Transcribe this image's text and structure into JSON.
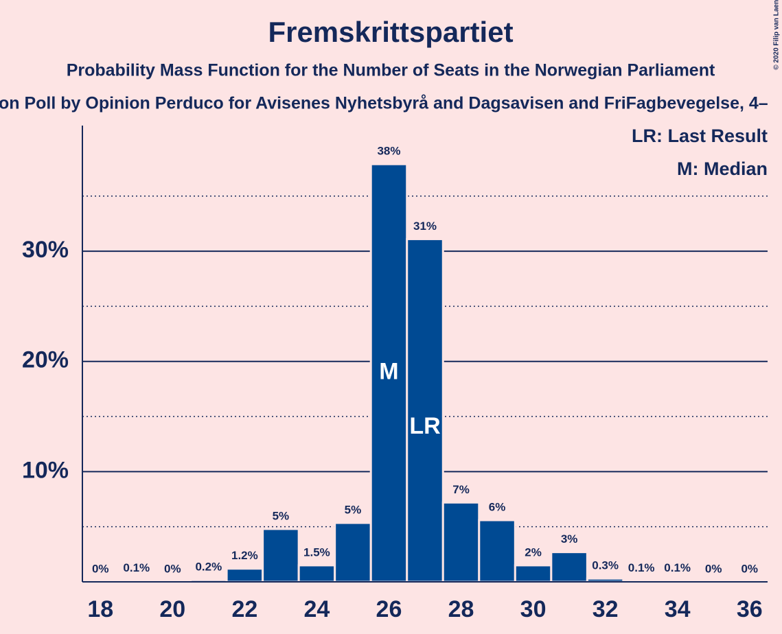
{
  "chart_data": {
    "type": "bar",
    "title": "Fremskrittspartiet",
    "subtitle": "Probability Mass Function for the Number of Seats in the Norwegian Parliament",
    "subtitle2": "on Poll by Opinion Perduco for Avisenes Nyhetsbyrå and Dagsavisen and FriFagbevegelse, 4–",
    "copyright": "© 2020 Filip van Laenen",
    "x": [
      18,
      19,
      20,
      21,
      22,
      23,
      24,
      25,
      26,
      27,
      28,
      29,
      30,
      31,
      32,
      33,
      34,
      35,
      36
    ],
    "values": [
      0,
      0.1,
      0,
      0.2,
      1.2,
      4.8,
      1.5,
      5.35,
      37.9,
      31.1,
      7.2,
      5.6,
      1.5,
      2.7,
      0.3,
      0.1,
      0.1,
      0,
      0
    ],
    "value_labels": [
      "0%",
      "0.1%",
      "0%",
      "0.2%",
      "1.2%",
      "5%",
      "1.5%",
      "5%",
      "38%",
      "31%",
      "7%",
      "6%",
      "2%",
      "3%",
      "0.3%",
      "0.1%",
      "0.1%",
      "0%",
      "0%"
    ],
    "color": "#004a93",
    "xlim": [
      17.5,
      36.5
    ],
    "xticks": [
      18,
      20,
      22,
      24,
      26,
      28,
      30,
      32,
      34,
      36
    ],
    "ylim": [
      0,
      41.4
    ],
    "yticks": [
      {
        "value": 10,
        "label": "10%"
      },
      {
        "value": 20,
        "label": "20%"
      },
      {
        "value": 30,
        "label": "30%"
      }
    ],
    "minor_yticks": [
      5,
      15,
      25,
      35
    ],
    "grid": true,
    "bar_annotations": [
      {
        "x": 26,
        "label": "M"
      },
      {
        "x": 27,
        "label": "LR"
      }
    ],
    "legend_notes": [
      "LR: Last Result",
      "M: Median"
    ]
  }
}
